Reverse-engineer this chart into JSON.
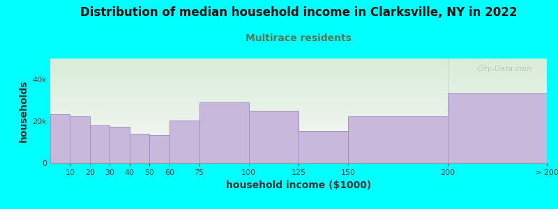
{
  "title": "Distribution of median household income in Clarksville, NY in 2022",
  "subtitle": "Multirace residents",
  "xlabel": "household income ($1000)",
  "ylabel": "households",
  "background_color": "#00FFFF",
  "plot_bg_top_color": "#d8edd8",
  "plot_bg_bottom_color": "#f8f8f8",
  "bar_color": "#c8b8dc",
  "bar_edge_color": "#a090c0",
  "values": [
    23500,
    22500,
    18000,
    17500,
    14000,
    13500,
    20500,
    29000,
    25000,
    15500,
    22500,
    33500
  ],
  "edges": [
    0,
    10,
    20,
    30,
    40,
    50,
    60,
    75,
    100,
    125,
    150,
    200,
    250
  ],
  "tick_positions": [
    10,
    20,
    30,
    40,
    50,
    60,
    75,
    100,
    125,
    150,
    200,
    250
  ],
  "tick_labels": [
    "10",
    "20",
    "30",
    "40",
    "50",
    "60",
    "75",
    "100",
    "125",
    "150",
    "200",
    "> 200"
  ],
  "ylim": [
    0,
    50000
  ],
  "yticks": [
    0,
    20000,
    40000
  ],
  "ytick_labels": [
    "0",
    "20k",
    "40k"
  ],
  "watermark": "City-Data.com",
  "title_fontsize": 12,
  "subtitle_fontsize": 10,
  "axis_label_fontsize": 10,
  "tick_fontsize": 8,
  "subtitle_color": "#557755",
  "title_color": "#111111"
}
